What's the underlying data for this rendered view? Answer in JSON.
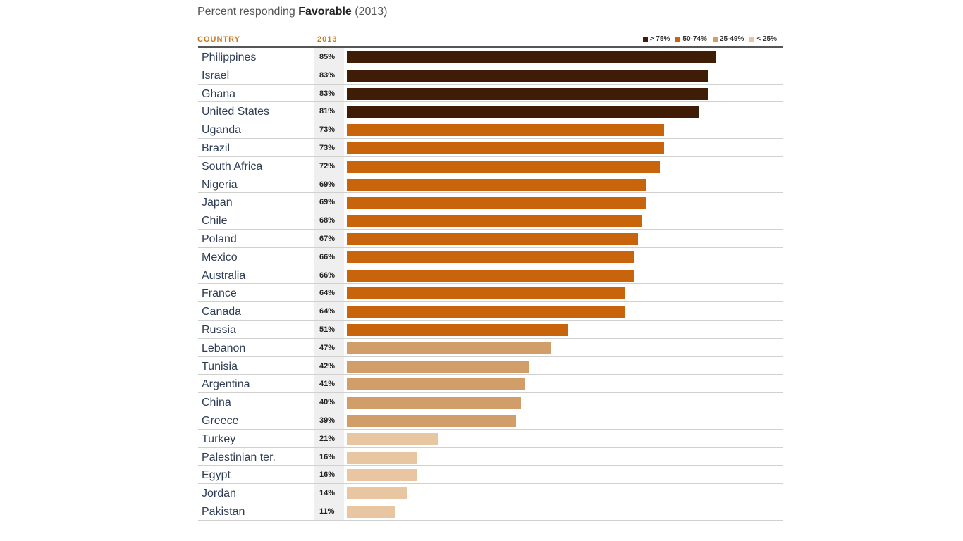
{
  "title": {
    "prefix": "Percent responding ",
    "bold": "Favorable",
    "suffix": " (2013)"
  },
  "headers": {
    "country": "COUNTRY",
    "year": "2013"
  },
  "legend": [
    {
      "label": "> 75%",
      "color": "#3f1c05"
    },
    {
      "label": "50-74%",
      "color": "#c8650c"
    },
    {
      "label": "25-49%",
      "color": "#d19d68"
    },
    {
      "label": "< 25%",
      "color": "#e8c6a2"
    }
  ],
  "chart_data": {
    "type": "bar",
    "orientation": "horizontal",
    "title": "Percent responding Favorable (2013)",
    "categories": [
      "Philippines",
      "Israel",
      "Ghana",
      "United States",
      "Uganda",
      "Brazil",
      "South Africa",
      "Nigeria",
      "Japan",
      "Chile",
      "Poland",
      "Mexico",
      "Australia",
      "France",
      "Canada",
      "Russia",
      "Lebanon",
      "Tunisia",
      "Argentina",
      "China",
      "Greece",
      "Turkey",
      "Palestinian ter.",
      "Egypt",
      "Jordan",
      "Pakistan"
    ],
    "values": [
      85,
      83,
      83,
      81,
      73,
      73,
      72,
      69,
      69,
      68,
      67,
      66,
      66,
      64,
      64,
      51,
      47,
      42,
      41,
      40,
      39,
      21,
      16,
      16,
      14,
      11
    ],
    "labels": [
      "85%",
      "83%",
      "83%",
      "81%",
      "73%",
      "73%",
      "72%",
      "69%",
      "69%",
      "68%",
      "67%",
      "66%",
      "66%",
      "64%",
      "64%",
      "51%",
      "47%",
      "42%",
      "41%",
      "40%",
      "39%",
      "21%",
      "16%",
      "16%",
      "14%",
      "11%"
    ],
    "xlim": [
      0,
      100
    ]
  }
}
